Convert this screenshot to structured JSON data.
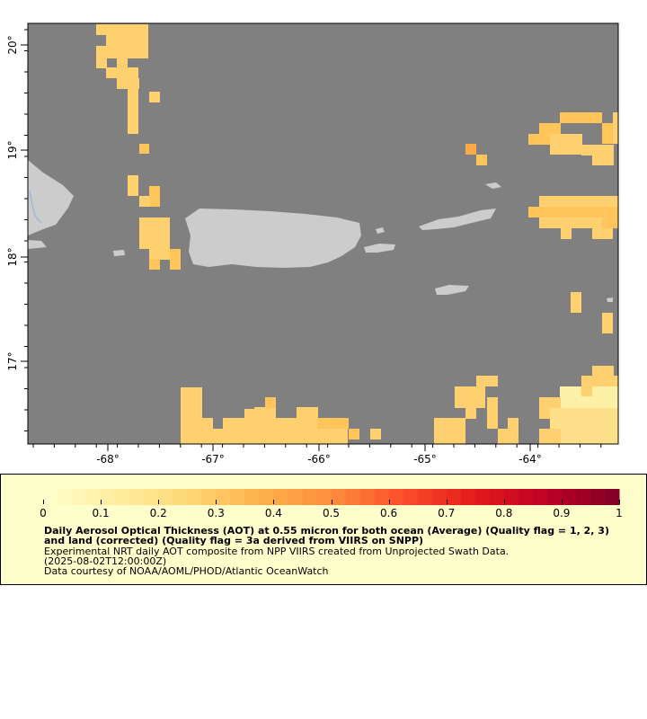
{
  "map": {
    "axes": {
      "lon_ticks": [
        "-68°",
        "-67°",
        "-66°",
        "-65°",
        "-64°"
      ],
      "lat_ticks": [
        "20°",
        "19°",
        "18°",
        "17°"
      ]
    },
    "colors": {
      "ocean": "#808080",
      "land": "#cccccc",
      "frame": "#000000"
    }
  },
  "legend": {
    "tick_labels": [
      "0",
      "0.1",
      "0.2",
      "0.3",
      "0.4",
      "0.5",
      "0.6",
      "0.7",
      "0.8",
      "0.9",
      "1"
    ],
    "title": "Daily Aerosol Optical Thickness (AOT) at 0.55 micron for both ocean (Average) (Quality flag = 1, 2, 3) and land (corrected) (Quality flag = 3a derived from VIIRS on SNPP)",
    "line1": "Experimental NRT daily AOT composite from NPP VIIRS created from Unprojected Swath Data.",
    "line2": "(2025-08-02T12:00:00Z)",
    "line3": "Data courtesy of NOAA/AOML/PHOD/Atlantic OceanWatch",
    "colormap": [
      "#ffffcc",
      "#ffeda0",
      "#fed976",
      "#feb24c",
      "#fd8d3c",
      "#fc4e2a",
      "#e31a1c",
      "#bd0026",
      "#800026"
    ]
  }
}
